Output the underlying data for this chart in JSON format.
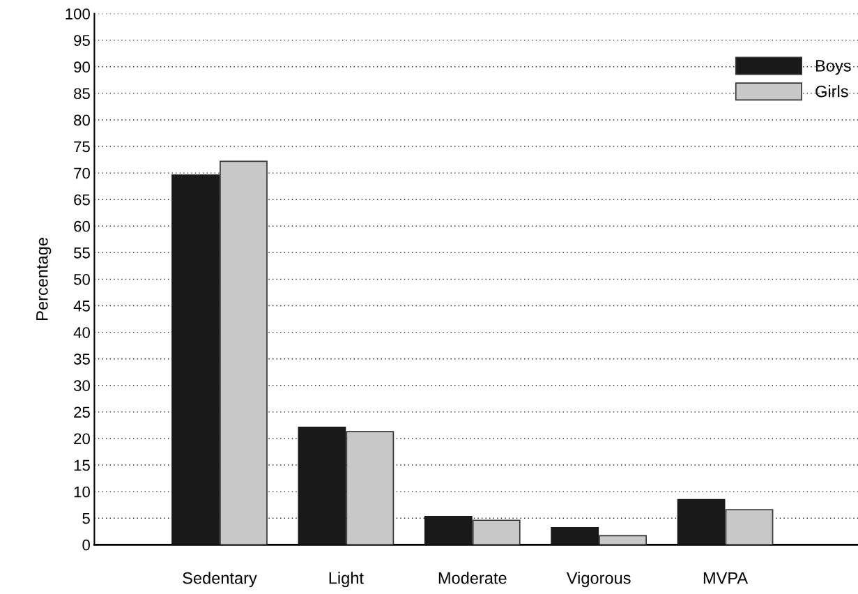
{
  "chart_data": {
    "type": "bar",
    "ylabel": "Percentage",
    "categories": [
      "Sedentary",
      "Light",
      "Moderate",
      "Vigorous",
      "MVPA"
    ],
    "series": [
      {
        "name": "Boys",
        "color": "#191919",
        "values": [
          69.6,
          22.1,
          5.3,
          3.2,
          8.5
        ]
      },
      {
        "name": "Girls",
        "color": "#c8c8c8",
        "values": [
          72.2,
          21.3,
          4.6,
          1.7,
          6.6
        ]
      }
    ],
    "ylim": [
      0,
      100
    ],
    "yticks": [
      0,
      5,
      10,
      15,
      20,
      25,
      30,
      35,
      40,
      45,
      50,
      55,
      60,
      65,
      70,
      75,
      80,
      85,
      90,
      95,
      100
    ],
    "grid": "y",
    "legend": "top right"
  }
}
